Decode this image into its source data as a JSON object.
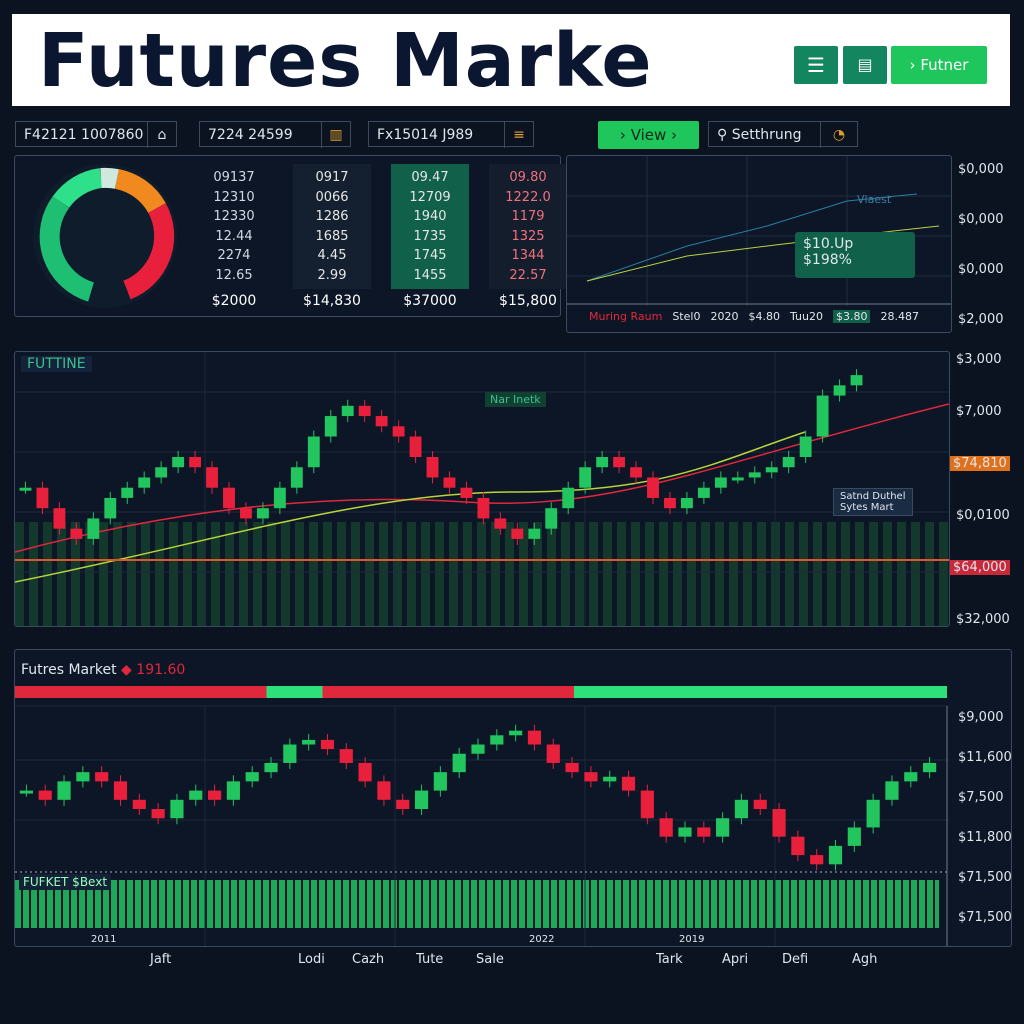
{
  "header": {
    "title": "Futures Marke",
    "button": "Futner"
  },
  "toolbar": {
    "fields": [
      "F42121 1007860",
      "7224 24599",
      "Fx15014 J989"
    ],
    "view": "View",
    "settings": "Setthrung"
  },
  "stats": {
    "columns": [
      {
        "values": [
          "09137",
          "12310",
          "12330",
          "12.44",
          "2274",
          "12.65"
        ],
        "total": "$2000"
      },
      {
        "values": [
          "0917",
          "0066",
          "1286",
          "1685",
          "4.45",
          "2.99"
        ],
        "total": "$14,830"
      },
      {
        "values": [
          "09.47",
          "12709",
          "1940",
          "1735",
          "1745",
          "1455"
        ],
        "total": "$37000"
      },
      {
        "values": [
          "09.80",
          "1222.0",
          "1179",
          "1325",
          "1344",
          "22.57"
        ],
        "total": "$15,800"
      }
    ]
  },
  "mini_chart": {
    "label": "Vlaest",
    "axis_labels": [
      "$0,000",
      "$0,000",
      "$0,000",
      "$2,000"
    ],
    "tooltip": [
      "$10.Up",
      "$198%"
    ],
    "strip": [
      "Muring Raum",
      "Stel0",
      "2020",
      "$4.80",
      "Tuu20",
      "$3.80",
      "28.487"
    ]
  },
  "main_chart": {
    "label": "FUTTINE",
    "tag": "Nar Inetk",
    "annotation": [
      "Satnd Duthel",
      "Sytes Mart"
    ],
    "axis_labels": [
      "$3,000",
      "$7,000",
      "$74,810",
      "$0,0100",
      "$64,000",
      "$32,000"
    ],
    "closes": [
      130,
      110,
      90,
      80,
      100,
      120,
      130,
      140,
      150,
      160,
      150,
      130,
      110,
      100,
      110,
      130,
      150,
      180,
      200,
      210,
      200,
      190,
      180,
      160,
      140,
      130,
      120,
      100,
      90,
      80,
      90,
      110,
      130,
      150,
      160,
      150,
      140,
      120,
      110,
      120,
      130,
      140,
      140,
      145,
      150,
      160,
      180,
      220,
      230,
      240
    ]
  },
  "lower_chart": {
    "label": "Futres Market",
    "price": "191.60",
    "volume_label": "FUFKET $Bext",
    "axis_labels": [
      "$9,000",
      "$11,600",
      "$7,500",
      "$11,800",
      "$71,500",
      "$71,500"
    ],
    "years": [
      "2011",
      "2022",
      "2019"
    ],
    "months": [
      "Jaft",
      "Lodi",
      "Cazh",
      "Tute",
      "Sale",
      "Tark",
      "Apri",
      "Defi",
      "Agh"
    ],
    "closes": [
      110,
      100,
      120,
      130,
      120,
      100,
      90,
      80,
      100,
      110,
      100,
      120,
      130,
      140,
      160,
      165,
      155,
      140,
      120,
      100,
      90,
      110,
      130,
      150,
      160,
      170,
      175,
      160,
      140,
      130,
      120,
      125,
      110,
      80,
      60,
      70,
      60,
      80,
      100,
      90,
      60,
      40,
      30,
      50,
      70,
      100,
      120,
      130,
      140
    ]
  }
}
